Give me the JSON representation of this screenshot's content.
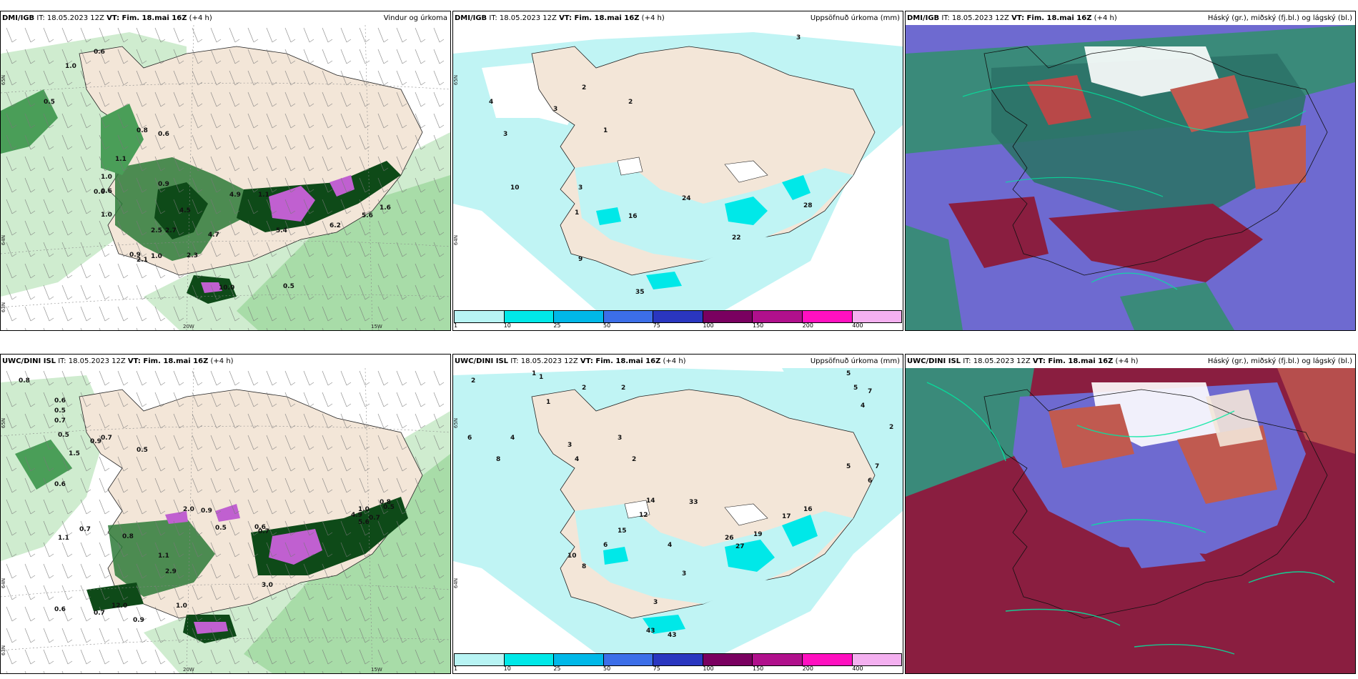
{
  "panels": [
    {
      "id": "p1",
      "source_bold": "DMI/IGB",
      "it_label": " IT: 18.05.2023 12Z ",
      "vt_bold": "VT: Fim. 18.mai 16Z",
      "offset": " (+4 h)",
      "product": "Vindur og úrkoma",
      "values": [
        "0.6",
        "1.0",
        "0.5",
        "0.8",
        "0.6",
        "1.1",
        "0.6",
        "1.0",
        "0.9",
        "0.6",
        "1.0",
        "4.5",
        "4.9",
        "1.1",
        "4.7",
        "2.7",
        "5.4",
        "6.2",
        "5.6",
        "1.6",
        "2.5",
        "2.1",
        "0.9",
        "1.0",
        "2.3",
        "10.0",
        "0.5"
      ],
      "axis": {
        "lon": [
          "20W",
          "15W"
        ],
        "lat": [
          "65N",
          "64N",
          "63N"
        ]
      }
    },
    {
      "id": "p2",
      "source_bold": "DMI/IGB",
      "it_label": " IT: 18.05.2023 12Z ",
      "vt_bold": "VT: Fim. 18.mai 16Z",
      "offset": " (+4 h)",
      "product": "Uppsöfnuð úrkoma (mm)",
      "values": [
        "3",
        "2",
        "2",
        "4",
        "3",
        "1",
        "3",
        "10",
        "3",
        "1",
        "16",
        "24",
        "28",
        "22",
        "9",
        "35"
      ],
      "axis": {
        "lat": [
          "65N",
          "64N"
        ]
      },
      "colorbar": {
        "labels": [
          "1",
          "10",
          "25",
          "50",
          "75",
          "100",
          "150",
          "200",
          "400"
        ],
        "colors": [
          "#b8f4f4",
          "#00e8e8",
          "#00b8e8",
          "#3c6ee8",
          "#2a36c0",
          "#7a0060",
          "#b0108c",
          "#ff10c0",
          "#f4b0f0"
        ]
      }
    },
    {
      "id": "p3",
      "source_bold": "DMI/IGB",
      "it_label": " IT: 18.05.2023 12Z ",
      "vt_bold": "VT: Fim. 18.mai 16Z",
      "offset": " (+4 h)",
      "product": "Háský (gr.), miðský (fj.bl.) og lágský (bl.)"
    },
    {
      "id": "p4",
      "source_bold": "UWC/DINI ISL",
      "it_label": " IT: 18.05.2023 12Z ",
      "vt_bold": "VT: Fim. 18.mai 16Z",
      "offset": " (+4 h)",
      "product": "",
      "values": [
        "0.8",
        "0.6",
        "0.5",
        "0.7",
        "0.5",
        "0.9",
        "1.5",
        "0.7",
        "0.5",
        "0.6",
        "1.1",
        "0.7",
        "0.8",
        "2.0",
        "0.9",
        "0.5",
        "0.6",
        "0.7",
        "4.9",
        "5.6",
        "1.0",
        "0.7",
        "0.8",
        "0.5",
        "1.1",
        "2.9",
        "3.0",
        "1.0",
        "12.0",
        "0.7",
        "0.6",
        "0.9"
      ],
      "axis": {
        "lon": [
          "20W",
          "15W"
        ],
        "lat": [
          "65N",
          "64N",
          "63N"
        ]
      }
    },
    {
      "id": "p5",
      "source_bold": "UWC/DINI ISL",
      "it_label": " IT: 18.05.2023 12Z ",
      "vt_bold": "VT: Fim. 18.mai 16Z",
      "offset": " (+4 h)",
      "product": "Uppsöfnuð úrkoma (mm)",
      "values": [
        "2",
        "1",
        "1",
        "2",
        "2",
        "1",
        "4",
        "6",
        "8",
        "3",
        "4",
        "3",
        "2",
        "14",
        "12",
        "33",
        "15",
        "6",
        "4",
        "10",
        "8",
        "3",
        "26",
        "27",
        "19",
        "17",
        "16",
        "43",
        "43",
        "3",
        "5",
        "5",
        "7",
        "4",
        "2",
        "5",
        "7",
        "6"
      ],
      "axis": {
        "lat": [
          "65N",
          "64N"
        ]
      },
      "colorbar": {
        "labels": [
          "1",
          "10",
          "25",
          "50",
          "75",
          "100",
          "150",
          "200",
          "400"
        ],
        "colors": [
          "#b8f4f4",
          "#00e8e8",
          "#00b8e8",
          "#3c6ee8",
          "#2a36c0",
          "#7a0060",
          "#b0108c",
          "#ff10c0",
          "#f4b0f0"
        ]
      }
    },
    {
      "id": "p6",
      "source_bold": "UWC/DINI ISL",
      "it_label": " IT: 18.05.2023 12Z ",
      "vt_bold": "VT: Fim. 18.mai 16Z",
      "offset": " (+4 h)",
      "product": "Háský (gr.), miðský (fj.bl.) og lágský (bl.)"
    }
  ],
  "colors": {
    "land": "#f3e6d8",
    "sea": "#ffffff",
    "precip_light": "#bfe6bf",
    "precip_mid": "#4a9e58",
    "precip_dark": "#0e4a18",
    "precip_heavy": "#c060d0",
    "accum_light": "#c0f4f4",
    "cloud_high": "#3a8a7a",
    "cloud_mid": "#6e6ad0",
    "cloud_low": "#8a1e40"
  }
}
